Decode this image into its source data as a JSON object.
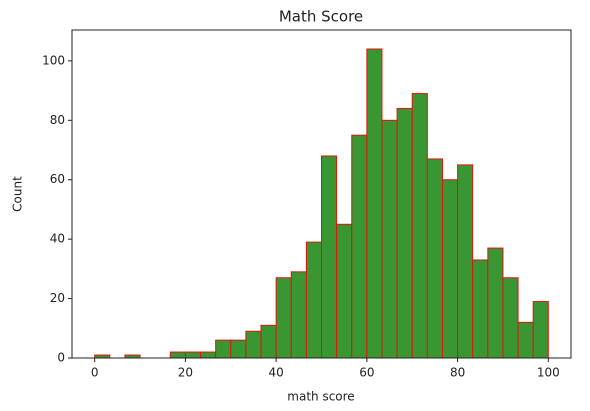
{
  "chart_data": {
    "type": "histogram",
    "title": "Math Score",
    "x_label": "math score",
    "y_label": "Count",
    "bins": [
      0,
      3.3333333333,
      6.6666666667,
      10,
      13.3333333333,
      16.6666666667,
      20,
      23.3333333333,
      26.6666666667,
      30,
      33.3333333333,
      36.6666666667,
      40,
      43.3333333333,
      46.6666666667,
      50,
      53.3333333333,
      56.6666666667,
      60,
      63.3333333333,
      66.6666666667,
      70,
      73.3333333333,
      76.6666666667,
      80,
      83.3333333333,
      86.6666666667,
      90,
      93.3333333333,
      96.6666666667,
      100
    ],
    "counts": [
      1,
      0,
      1,
      0,
      0,
      2,
      2,
      2,
      6,
      6,
      9,
      11,
      27,
      29,
      39,
      68,
      45,
      75,
      104,
      80,
      84,
      89,
      67,
      60,
      65,
      33,
      37,
      27,
      12,
      19
    ],
    "color": "#3a9632",
    "edgecolor": "#e0150c",
    "xlim": [
      -5,
      105
    ],
    "xticks": [
      0,
      20,
      40,
      60,
      80,
      100
    ],
    "ylim": [
      0,
      110.4
    ],
    "yticks": [
      0,
      20,
      40,
      60,
      80,
      100
    ],
    "grid": false
  }
}
